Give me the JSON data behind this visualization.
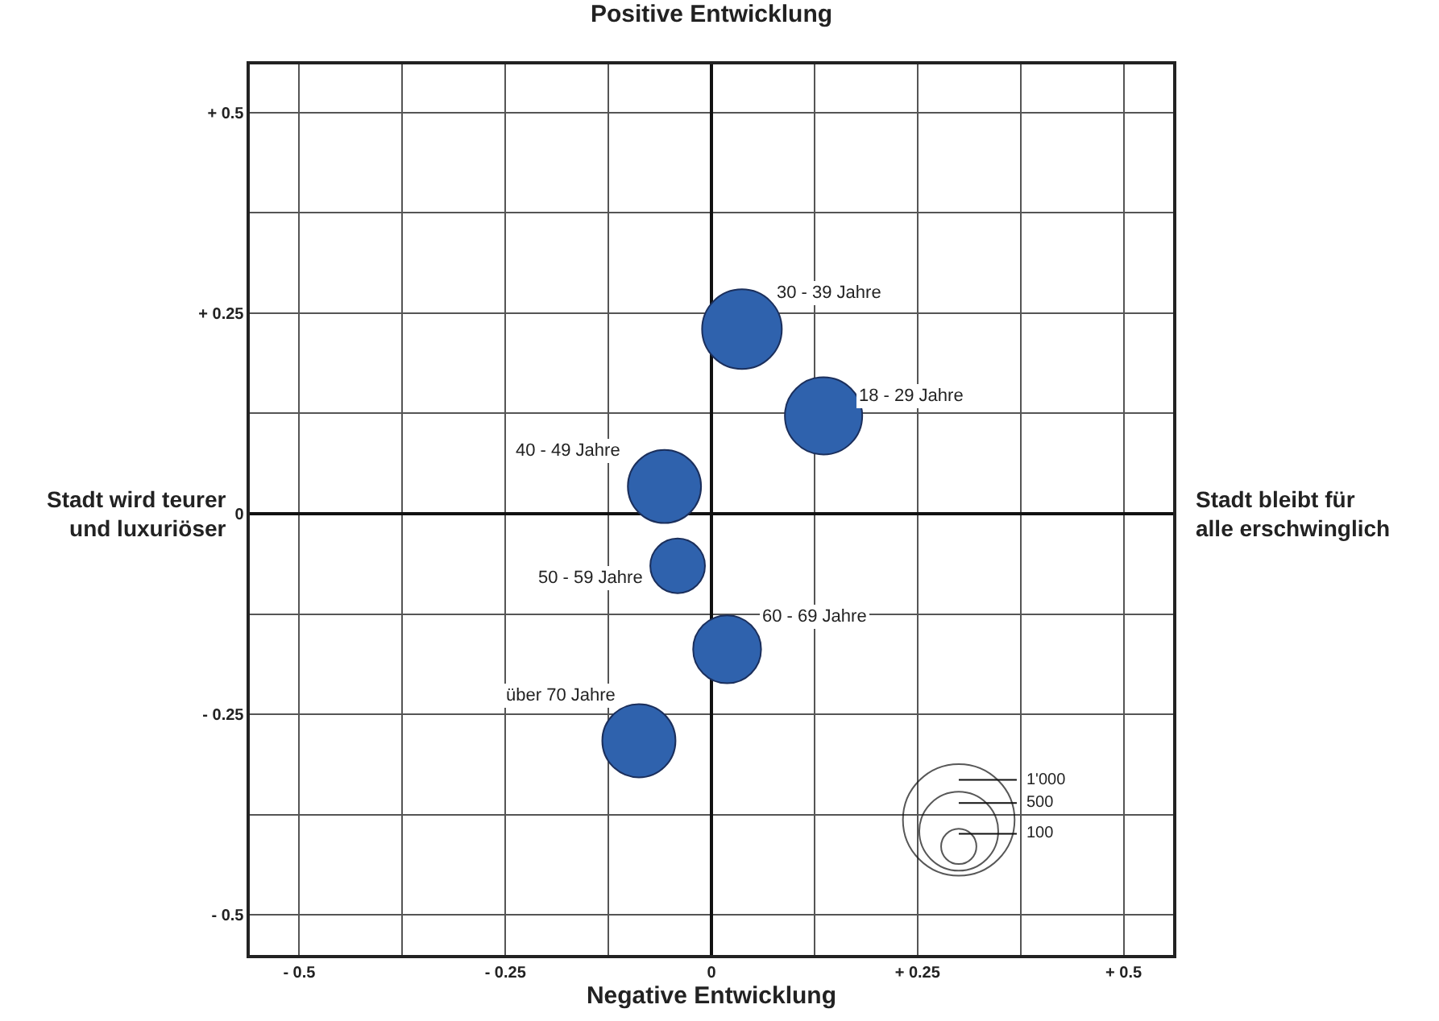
{
  "chart_data": {
    "type": "bubble",
    "title": "Positive Entwicklung",
    "xlabel": "Negative Entwicklung",
    "x": [
      0.037,
      0.136,
      -0.057,
      -0.041,
      0.019,
      -0.088
    ],
    "series": [
      {
        "color": "#2f62ad",
        "values": [
          0.23,
          0.122,
          0.034,
          -0.065,
          -0.169,
          -0.283
        ],
        "sizes": [
          510,
          480,
          430,
          240,
          370,
          430
        ]
      }
    ],
    "size_legend": [
      {
        "value": 1000,
        "label": "1'000"
      },
      {
        "value": 500,
        "label": "500"
      },
      {
        "value": 100,
        "label": "100"
      }
    ],
    "annotations": [
      "Stadt wird teurer und luxuriöser",
      "Stadt bleibt für alle erschwinglich",
      {
        "text": "30 - 39 Jahre",
        "x": 0.037,
        "y": 0.23
      },
      {
        "text": "18 - 29 Jahre",
        "x": 0.136,
        "y": 0.122
      },
      {
        "text": "40 - 49 Jahre",
        "x": -0.057,
        "y": 0.034
      },
      {
        "text": "50 - 59 Jahre",
        "x": -0.041,
        "y": -0.065
      },
      {
        "text": "60 - 69 Jahre",
        "x": 0.019,
        "y": -0.169
      },
      {
        "text": "über 70 Jahre",
        "x": -0.088,
        "y": -0.283
      }
    ],
    "xlim": [
      -0.56,
      0.56
    ],
    "ylim": [
      -0.55,
      0.56
    ],
    "xticks": [
      {
        "value": -0.5,
        "label": "- 0.5"
      },
      {
        "value": -0.375,
        "label": null
      },
      {
        "value": -0.25,
        "label": "- 0.25"
      },
      {
        "value": -0.125,
        "label": null
      },
      0,
      {
        "value": 0.125,
        "label": null
      },
      {
        "value": 0.25,
        "label": "+ 0.25"
      },
      {
        "value": 0.375,
        "label": null
      },
      {
        "value": 0.5,
        "label": "+ 0.5"
      }
    ],
    "yticks": [
      {
        "value": -0.5,
        "label": "- 0.5"
      },
      {
        "value": -0.375,
        "label": null
      },
      {
        "value": -0.25,
        "label": "- 0.25"
      },
      {
        "value": -0.125,
        "label": null
      },
      0,
      {
        "value": 0.125,
        "label": null
      },
      {
        "value": 0.25,
        "label": "+ 0.25"
      },
      {
        "value": 0.375,
        "label": null
      },
      {
        "value": 0.5,
        "label": "+ 0.5"
      }
    ],
    "grid": true
  }
}
